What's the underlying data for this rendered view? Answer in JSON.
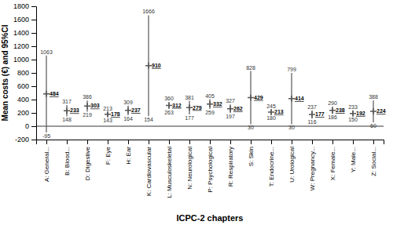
{
  "chart_data": {
    "type": "errorbar",
    "xlabel": "ICPC-2 chapters",
    "ylabel": "Mean costs (€) and 95%CI",
    "categories": [
      "A: General...",
      "B: Blood...",
      "D: Digestive",
      "F: Eye",
      "H: Ear",
      "K: Cardiovascular",
      "L: Musculoskeletal",
      "N: Neurological",
      "P: Psychological",
      "R: Respiratory",
      "S: Skin",
      "T: Endocrine...",
      "U: Urological",
      "W: Pregnancy...",
      "X: Female...",
      "Y: Male...",
      "Z: Social..."
    ],
    "values": [
      484,
      233,
      303,
      178,
      237,
      910,
      312,
      279,
      332,
      262,
      429,
      213,
      414,
      177,
      238,
      192,
      224
    ],
    "ci_upper": [
      1063,
      317,
      386,
      213,
      309,
      1666,
      360,
      381,
      405,
      327,
      828,
      245,
      799,
      237,
      290,
      233,
      388
    ],
    "ci_lower": [
      -95,
      148,
      219,
      143,
      164,
      154,
      263,
      177,
      259,
      197,
      30,
      180,
      30,
      116,
      186,
      150,
      60
    ],
    "hlines": [
      0
    ],
    "ylim": [
      -200,
      1800
    ],
    "yticks": [
      -200,
      0,
      200,
      400,
      600,
      800,
      1000,
      1200,
      1400,
      1600,
      1800
    ],
    "color": "#555555",
    "marker": "plus",
    "data_labels": true,
    "grid": false
  }
}
